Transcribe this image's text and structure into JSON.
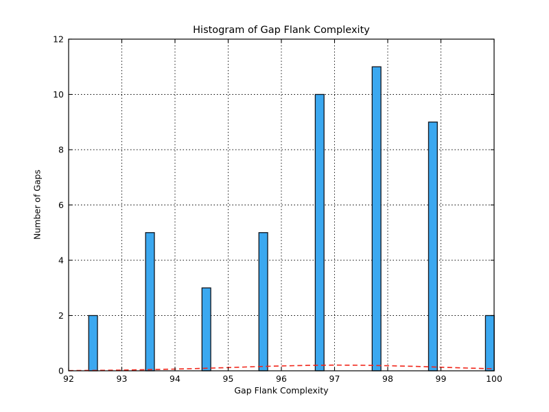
{
  "window": {
    "background": "#ffffff"
  },
  "chart_data": {
    "type": "bar",
    "title": "Histogram of Gap Flank Complexity",
    "xlabel": "Gap Flank Complexity",
    "ylabel": "Number of Gaps",
    "xlim": [
      92,
      100
    ],
    "ylim": [
      0,
      12
    ],
    "x_ticks": [
      92,
      93,
      94,
      95,
      96,
      97,
      98,
      99,
      100
    ],
    "y_ticks": [
      0,
      2,
      4,
      6,
      8,
      10,
      12
    ],
    "grid": "dotted",
    "legend": "none",
    "bar_width": 0.165,
    "bin_centers": [
      92.46,
      93.53,
      94.59,
      95.66,
      96.72,
      97.79,
      98.85,
      99.92
    ],
    "values": [
      2,
      5,
      3,
      5,
      10,
      11,
      9,
      2
    ],
    "colors": {
      "bar_fill": "#3BA8F0",
      "bar_edge": "#10141c",
      "fit_line": "#f02418",
      "grid": "#000000",
      "axis": "#000000",
      "text": "#000000"
    },
    "fit_curve": {
      "style": "dashed",
      "points": [
        [
          92.0,
          0.008
        ],
        [
          92.5,
          0.015
        ],
        [
          93.0,
          0.026
        ],
        [
          93.5,
          0.041
        ],
        [
          94.0,
          0.062
        ],
        [
          94.5,
          0.088
        ],
        [
          95.0,
          0.118
        ],
        [
          95.5,
          0.148
        ],
        [
          96.0,
          0.176
        ],
        [
          96.5,
          0.196
        ],
        [
          97.0,
          0.205
        ],
        [
          97.5,
          0.201
        ],
        [
          98.0,
          0.185
        ],
        [
          98.5,
          0.161
        ],
        [
          99.0,
          0.13
        ],
        [
          99.5,
          0.1
        ],
        [
          100.0,
          0.072
        ]
      ]
    }
  }
}
